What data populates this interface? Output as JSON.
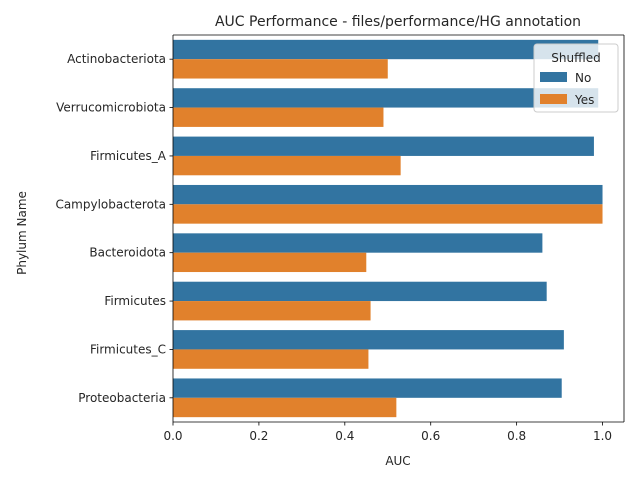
{
  "chart_data": {
    "type": "bar",
    "orientation": "horizontal",
    "title": "AUC Performance - files/performance/HG annotation",
    "xlabel": "AUC",
    "ylabel": "Phylum Name",
    "xlim": [
      0,
      1.05
    ],
    "xticks": [
      "0.0",
      "0.2",
      "0.4",
      "0.6",
      "0.8",
      "1.0"
    ],
    "xtick_values": [
      0,
      0.2,
      0.4,
      0.6,
      0.8,
      1.0
    ],
    "categories": [
      "Actinobacteriota",
      "Verrucomicrobiota",
      "Firmicutes_A",
      "Campylobacterota",
      "Bacteroidota",
      "Firmicutes",
      "Firmicutes_C",
      "Proteobacteria"
    ],
    "legend_title": "Shuffled",
    "legend_position": "top-right",
    "grid": false,
    "series": [
      {
        "name": "No",
        "color": "#3274a1",
        "values": [
          0.99,
          0.99,
          0.98,
          1.0,
          0.86,
          0.87,
          0.91,
          0.905
        ]
      },
      {
        "name": "Yes",
        "color": "#e1812c",
        "values": [
          0.5,
          0.49,
          0.53,
          1.0,
          0.45,
          0.46,
          0.455,
          0.52
        ]
      }
    ]
  }
}
